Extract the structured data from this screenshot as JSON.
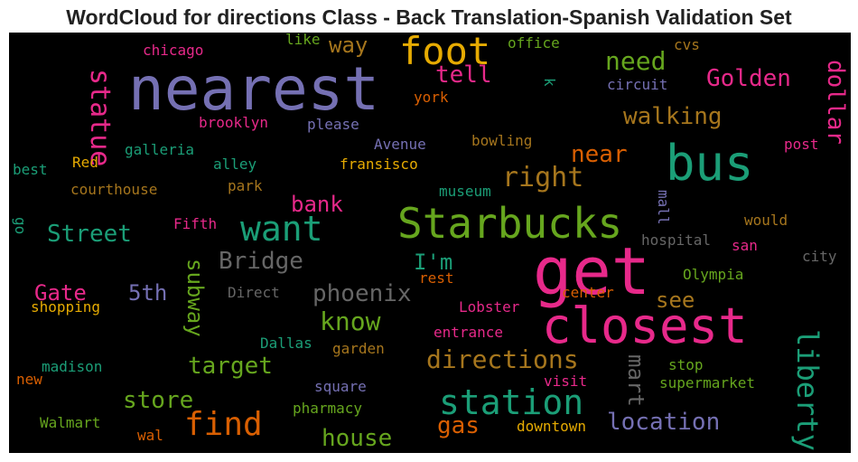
{
  "chart_data": {
    "type": "wordcloud",
    "title": "WordCloud for directions Class - Back Translation-Spanish Validation Set",
    "background": "#000000",
    "colormap": "Dark2",
    "words": [
      {
        "text": "nearest",
        "color": "#7570b3"
      },
      {
        "text": "get",
        "color": "#e7298a"
      },
      {
        "text": "closest",
        "color": "#e7298a"
      },
      {
        "text": "Starbucks",
        "color": "#66a61e"
      },
      {
        "text": "bus",
        "color": "#1b9e77"
      },
      {
        "text": "foot",
        "color": "#e6ab02"
      },
      {
        "text": "want",
        "color": "#1b9e77"
      },
      {
        "text": "station",
        "color": "#1b9e77"
      },
      {
        "text": "find",
        "color": "#d95f02"
      },
      {
        "text": "liberty",
        "color": "#1b9e77"
      },
      {
        "text": "statue",
        "color": "#e7298a"
      },
      {
        "text": "need",
        "color": "#66a61e"
      },
      {
        "text": "right",
        "color": "#a6761d"
      },
      {
        "text": "directions",
        "color": "#a6761d"
      },
      {
        "text": "location",
        "color": "#7570b3"
      },
      {
        "text": "phoenix",
        "color": "#666666"
      },
      {
        "text": "know",
        "color": "#66a61e"
      },
      {
        "text": "house",
        "color": "#66a61e"
      },
      {
        "text": "store",
        "color": "#66a61e"
      },
      {
        "text": "target",
        "color": "#66a61e"
      },
      {
        "text": "Bridge",
        "color": "#666666"
      },
      {
        "text": "Street",
        "color": "#1b9e77"
      },
      {
        "text": "walking",
        "color": "#a6761d"
      },
      {
        "text": "Golden",
        "color": "#e7298a"
      },
      {
        "text": "dollar",
        "color": "#e7298a"
      },
      {
        "text": "way",
        "color": "#a6761d"
      },
      {
        "text": "tell",
        "color": "#e7298a"
      },
      {
        "text": "near",
        "color": "#d95f02"
      },
      {
        "text": "bank",
        "color": "#e7298a"
      },
      {
        "text": "5th",
        "color": "#7570b3"
      },
      {
        "text": "Gate",
        "color": "#e7298a"
      },
      {
        "text": "subway",
        "color": "#66a61e"
      },
      {
        "text": "I'm",
        "color": "#1b9e77"
      },
      {
        "text": "see",
        "color": "#a6761d"
      },
      {
        "text": "mart",
        "color": "#666666"
      },
      {
        "text": "gas",
        "color": "#d95f02"
      },
      {
        "text": "chicago",
        "color": "#e7298a"
      },
      {
        "text": "like",
        "color": "#66a61e"
      },
      {
        "text": "office",
        "color": "#66a61e"
      },
      {
        "text": "cvs",
        "color": "#a6761d"
      },
      {
        "text": "k",
        "color": "#1b9e77"
      },
      {
        "text": "circuit",
        "color": "#7570b3"
      },
      {
        "text": "york",
        "color": "#d95f02"
      },
      {
        "text": "brooklyn",
        "color": "#e7298a"
      },
      {
        "text": "please",
        "color": "#7570b3"
      },
      {
        "text": "galleria",
        "color": "#1b9e77"
      },
      {
        "text": "Avenue",
        "color": "#7570b3"
      },
      {
        "text": "bowling",
        "color": "#a6761d"
      },
      {
        "text": "post",
        "color": "#e7298a"
      },
      {
        "text": "best",
        "color": "#1b9e77"
      },
      {
        "text": "Red",
        "color": "#e6ab02"
      },
      {
        "text": "alley",
        "color": "#1b9e77"
      },
      {
        "text": "fransisco",
        "color": "#e6ab02"
      },
      {
        "text": "courthouse",
        "color": "#a6761d"
      },
      {
        "text": "park",
        "color": "#a6761d"
      },
      {
        "text": "museum",
        "color": "#1b9e77"
      },
      {
        "text": "mall",
        "color": "#7570b3"
      },
      {
        "text": "would",
        "color": "#a6761d"
      },
      {
        "text": "go",
        "color": "#1b9e77"
      },
      {
        "text": "Fifth",
        "color": "#e7298a"
      },
      {
        "text": "hospital",
        "color": "#666666"
      },
      {
        "text": "san",
        "color": "#e7298a"
      },
      {
        "text": "city",
        "color": "#666666"
      },
      {
        "text": "Olympia",
        "color": "#66a61e"
      },
      {
        "text": "Direct",
        "color": "#666666"
      },
      {
        "text": "rest",
        "color": "#d95f02"
      },
      {
        "text": "center",
        "color": "#d95f02"
      },
      {
        "text": "shopping",
        "color": "#e6ab02"
      },
      {
        "text": "Lobster",
        "color": "#e7298a"
      },
      {
        "text": "entrance",
        "color": "#e7298a"
      },
      {
        "text": "Dallas",
        "color": "#1b9e77"
      },
      {
        "text": "garden",
        "color": "#a6761d"
      },
      {
        "text": "madison",
        "color": "#1b9e77"
      },
      {
        "text": "new",
        "color": "#d95f02"
      },
      {
        "text": "square",
        "color": "#7570b3"
      },
      {
        "text": "visit",
        "color": "#e7298a"
      },
      {
        "text": "stop",
        "color": "#66a61e"
      },
      {
        "text": "supermarket",
        "color": "#66a61e"
      },
      {
        "text": "pharmacy",
        "color": "#66a61e"
      },
      {
        "text": "Walmart",
        "color": "#66a61e"
      },
      {
        "text": "wal",
        "color": "#d95f02"
      },
      {
        "text": "downtown",
        "color": "#e6ab02"
      }
    ]
  }
}
